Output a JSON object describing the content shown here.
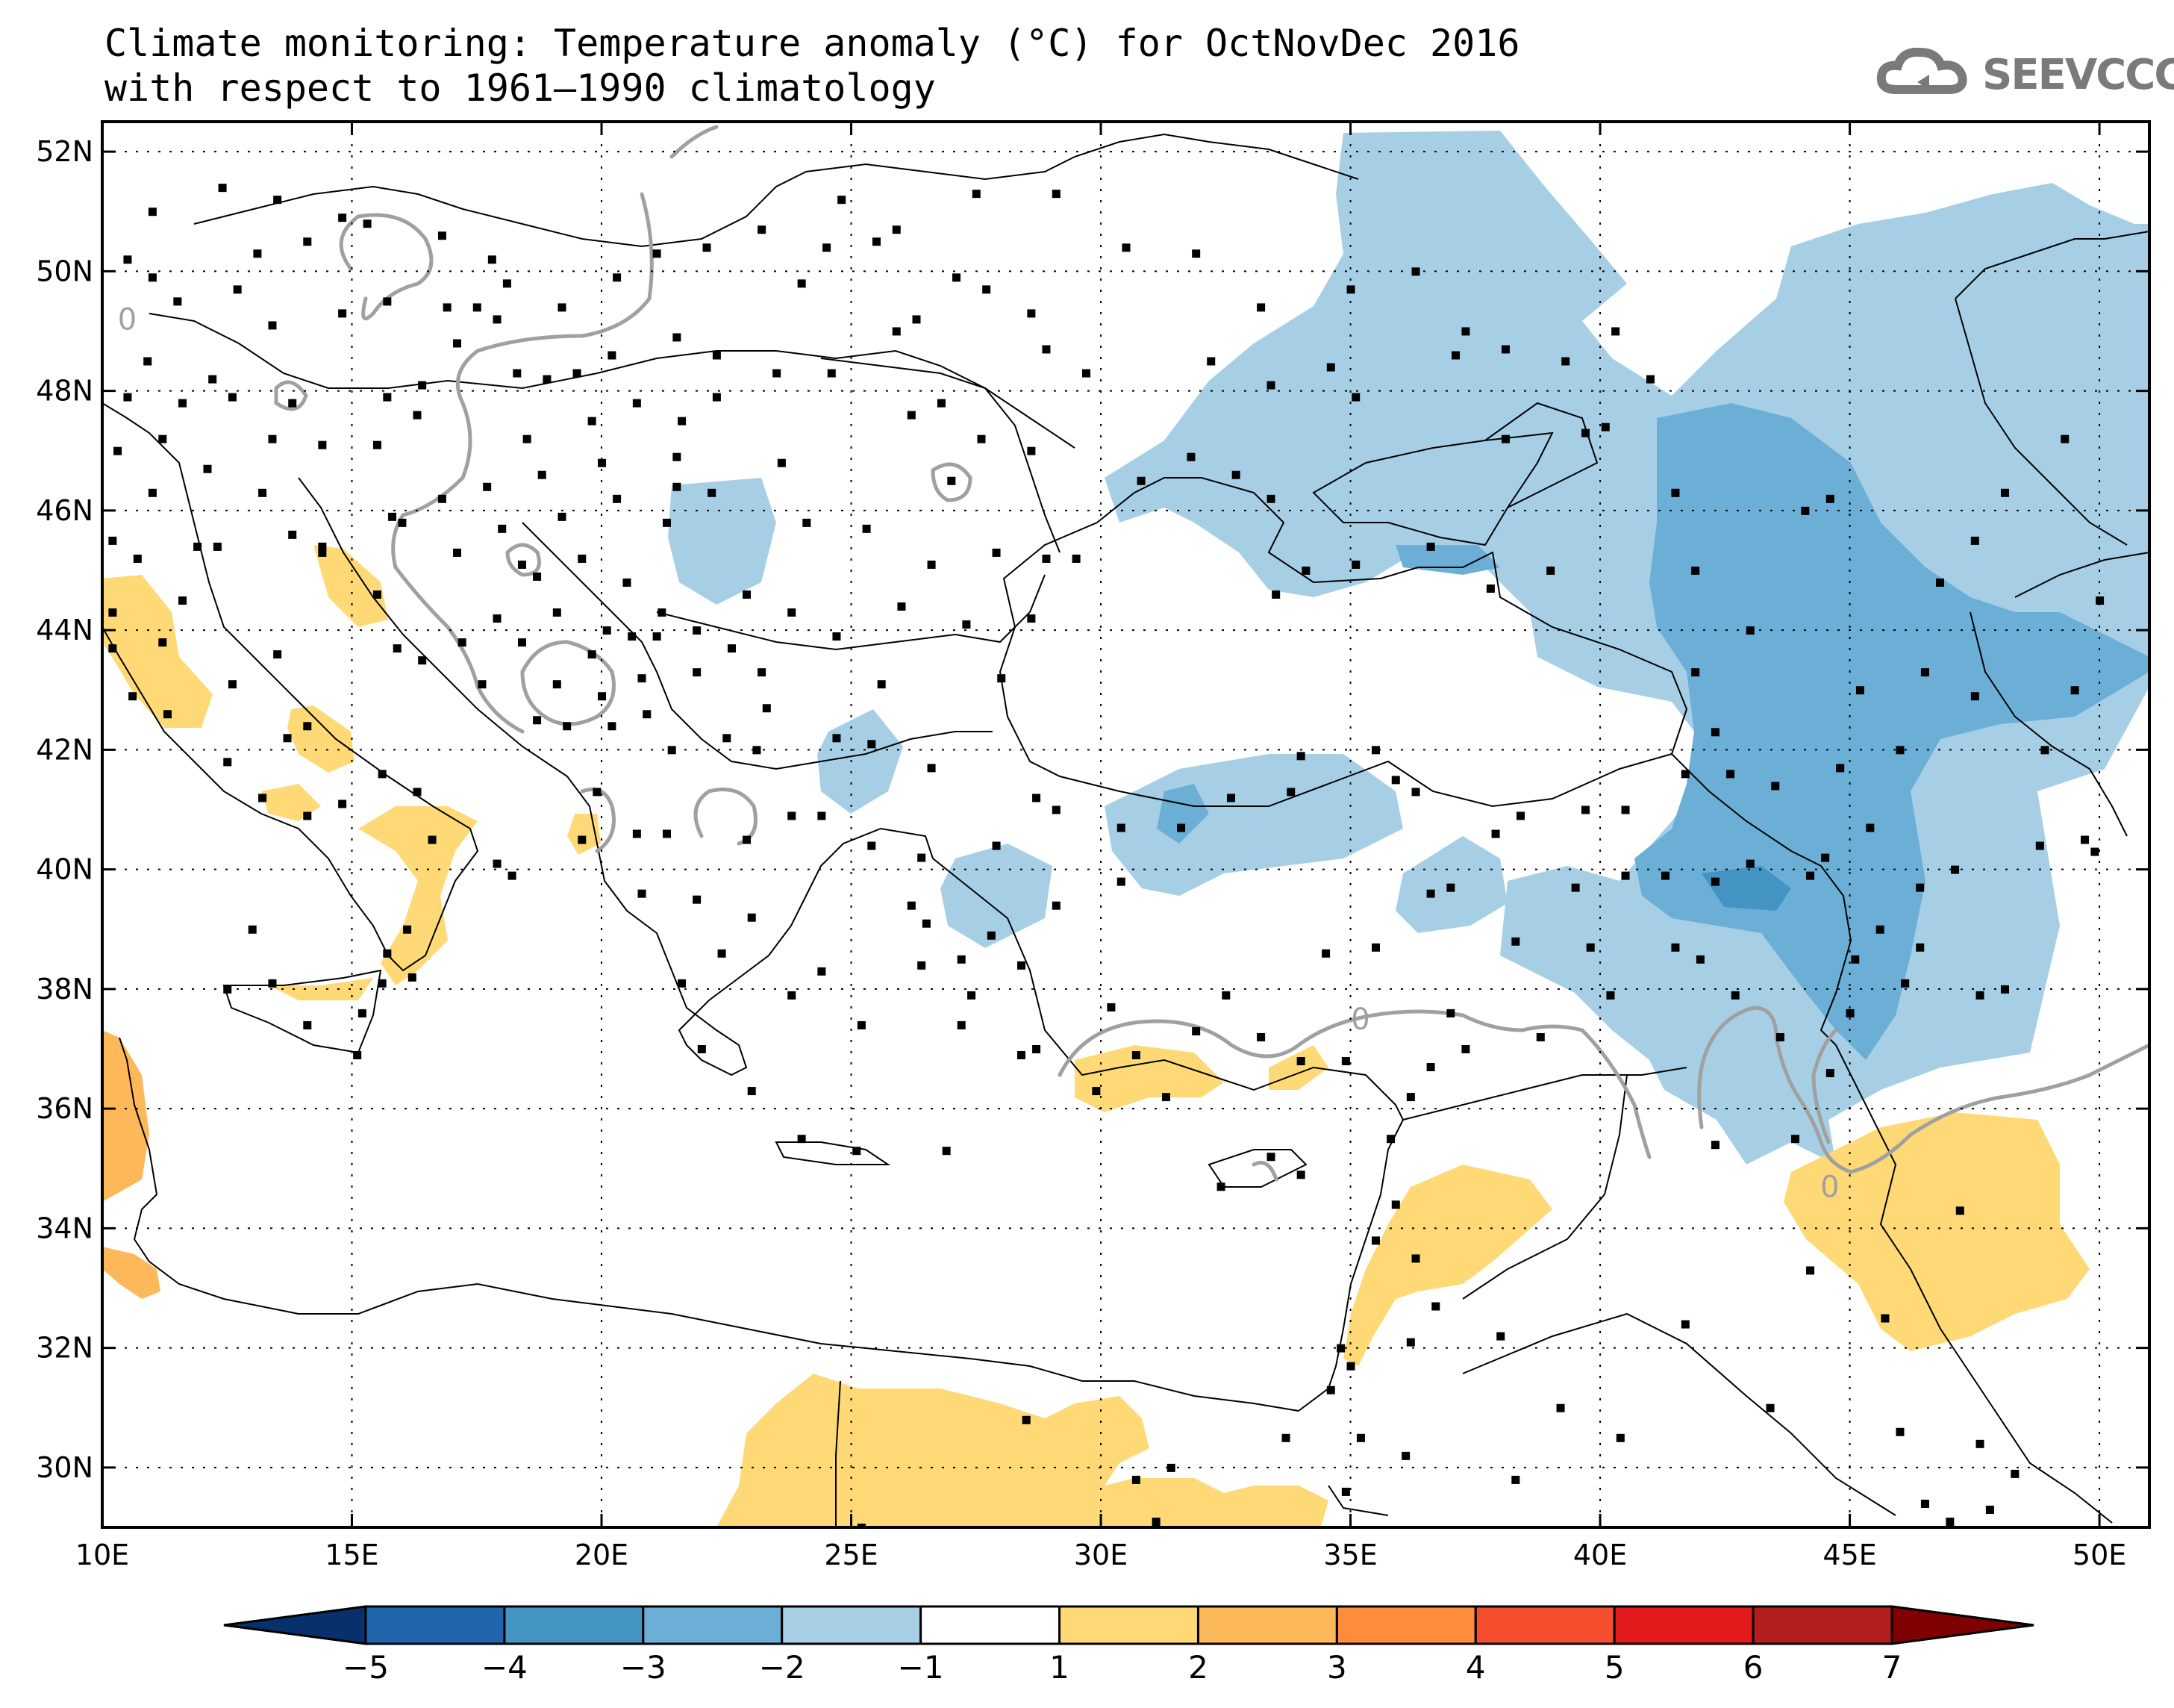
{
  "title": {
    "line1": "Climate monitoring: Temperature anomaly (°C) for OctNovDec 2016",
    "line2": "with respect to 1961–1990 climatology"
  },
  "logo": {
    "text": "SEEVCCC"
  },
  "map": {
    "lon_range": [
      10,
      51
    ],
    "lat_range": [
      29,
      52.5
    ],
    "lon_ticks": [
      {
        "value": 10,
        "label": "10E"
      },
      {
        "value": 15,
        "label": "15E"
      },
      {
        "value": 20,
        "label": "20E"
      },
      {
        "value": 25,
        "label": "25E"
      },
      {
        "value": 30,
        "label": "30E"
      },
      {
        "value": 35,
        "label": "35E"
      },
      {
        "value": 40,
        "label": "40E"
      },
      {
        "value": 45,
        "label": "45E"
      },
      {
        "value": 50,
        "label": "50E"
      }
    ],
    "lat_ticks": [
      {
        "value": 30,
        "label": "30N"
      },
      {
        "value": 32,
        "label": "32N"
      },
      {
        "value": 34,
        "label": "34N"
      },
      {
        "value": 36,
        "label": "36N"
      },
      {
        "value": 38,
        "label": "38N"
      },
      {
        "value": 40,
        "label": "40N"
      },
      {
        "value": 42,
        "label": "42N"
      },
      {
        "value": 44,
        "label": "44N"
      },
      {
        "value": 46,
        "label": "46N"
      },
      {
        "value": 48,
        "label": "48N"
      },
      {
        "value": 50,
        "label": "50N"
      },
      {
        "value": 52,
        "label": "52N"
      }
    ],
    "contour_label": "0",
    "zero_contour_labels": [
      {
        "lon": 10.5,
        "lat": 49.2
      },
      {
        "lon": 35.2,
        "lat": 37.5
      },
      {
        "lon": 44.6,
        "lat": 34.7
      }
    ]
  },
  "legend": {
    "bins": [
      {
        "color": "#08306b"
      },
      {
        "color": "#2166ac"
      },
      {
        "color": "#4393c3"
      },
      {
        "color": "#6baed6"
      },
      {
        "color": "#a6cfe6"
      },
      {
        "color": "#ffffff"
      },
      {
        "color": "#fed976"
      },
      {
        "color": "#fdb85a"
      },
      {
        "color": "#fd8d3c"
      },
      {
        "color": "#f54e2f"
      },
      {
        "color": "#e31a1c"
      },
      {
        "color": "#b21e1e"
      },
      {
        "color": "#7f0000"
      }
    ],
    "labels": [
      "−5",
      "−4",
      "−3",
      "−2",
      "−1",
      "1",
      "2",
      "3",
      "4",
      "5",
      "6",
      "7"
    ]
  },
  "colors": {
    "anomaly_neg1_neg2": "#a6cfe6",
    "anomaly_neg2_neg3": "#6baed6",
    "anomaly_neg3_neg4": "#4393c3",
    "anomaly_pos1_pos2": "#fed976",
    "anomaly_pos2_pos3": "#fdb85a",
    "zero_contour": "#a0a0a0"
  }
}
